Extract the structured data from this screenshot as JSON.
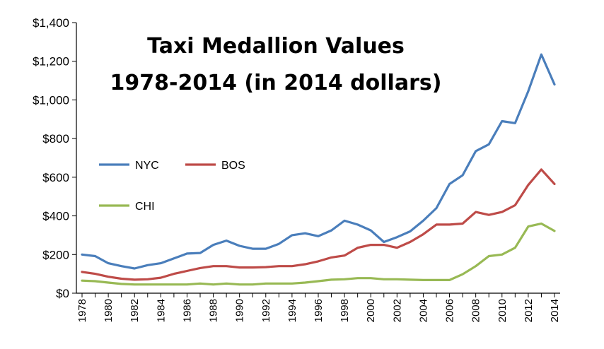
{
  "chart_data": {
    "type": "line",
    "title": [
      "Taxi Medallion Values",
      "1978-2014 (in 2014 dollars)"
    ],
    "xlabel": "",
    "ylabel": "",
    "x": [
      1978,
      1979,
      1980,
      1981,
      1982,
      1983,
      1984,
      1985,
      1986,
      1987,
      1988,
      1989,
      1990,
      1991,
      1992,
      1993,
      1994,
      1995,
      1996,
      1997,
      1998,
      1999,
      2000,
      2001,
      2002,
      2003,
      2004,
      2005,
      2006,
      2007,
      2008,
      2009,
      2010,
      2011,
      2012,
      2013,
      2014
    ],
    "x_tick_labels": [
      "1978",
      "1980",
      "1982",
      "1984",
      "1986",
      "1988",
      "1990",
      "1992",
      "1994",
      "1996",
      "1998",
      "2000",
      "2002",
      "2004",
      "2006",
      "2008",
      "2010",
      "2012",
      "2014"
    ],
    "ylim": [
      0,
      1400
    ],
    "y_ticks": [
      0,
      200,
      400,
      600,
      800,
      1000,
      1200,
      1400
    ],
    "y_tick_labels": [
      "$0",
      "$200",
      "$400",
      "$600",
      "$800",
      "$1,000",
      "$1,200",
      "$1,400"
    ],
    "grid": false,
    "legend_placement": "left-middle",
    "series": [
      {
        "name": "NYC",
        "color": "#4a7ebb",
        "values": [
          200,
          192,
          155,
          140,
          128,
          145,
          155,
          180,
          205,
          208,
          250,
          272,
          245,
          230,
          230,
          255,
          300,
          310,
          295,
          325,
          375,
          355,
          325,
          265,
          290,
          320,
          375,
          440,
          565,
          610,
          735,
          770,
          890,
          880,
          1045,
          1235,
          1080
        ]
      },
      {
        "name": "BOS",
        "color": "#be4b48",
        "values": [
          110,
          100,
          85,
          75,
          70,
          72,
          80,
          100,
          115,
          130,
          140,
          140,
          133,
          133,
          135,
          140,
          140,
          150,
          165,
          185,
          195,
          235,
          250,
          250,
          235,
          265,
          305,
          355,
          355,
          360,
          420,
          405,
          420,
          455,
          560,
          640,
          565
        ]
      },
      {
        "name": "CHI",
        "color": "#98b954",
        "values": [
          65,
          62,
          55,
          48,
          45,
          45,
          45,
          45,
          45,
          50,
          45,
          50,
          45,
          45,
          50,
          50,
          50,
          55,
          62,
          70,
          72,
          78,
          78,
          72,
          72,
          70,
          68,
          68,
          68,
          98,
          140,
          192,
          200,
          235,
          345,
          360,
          322
        ]
      }
    ]
  }
}
